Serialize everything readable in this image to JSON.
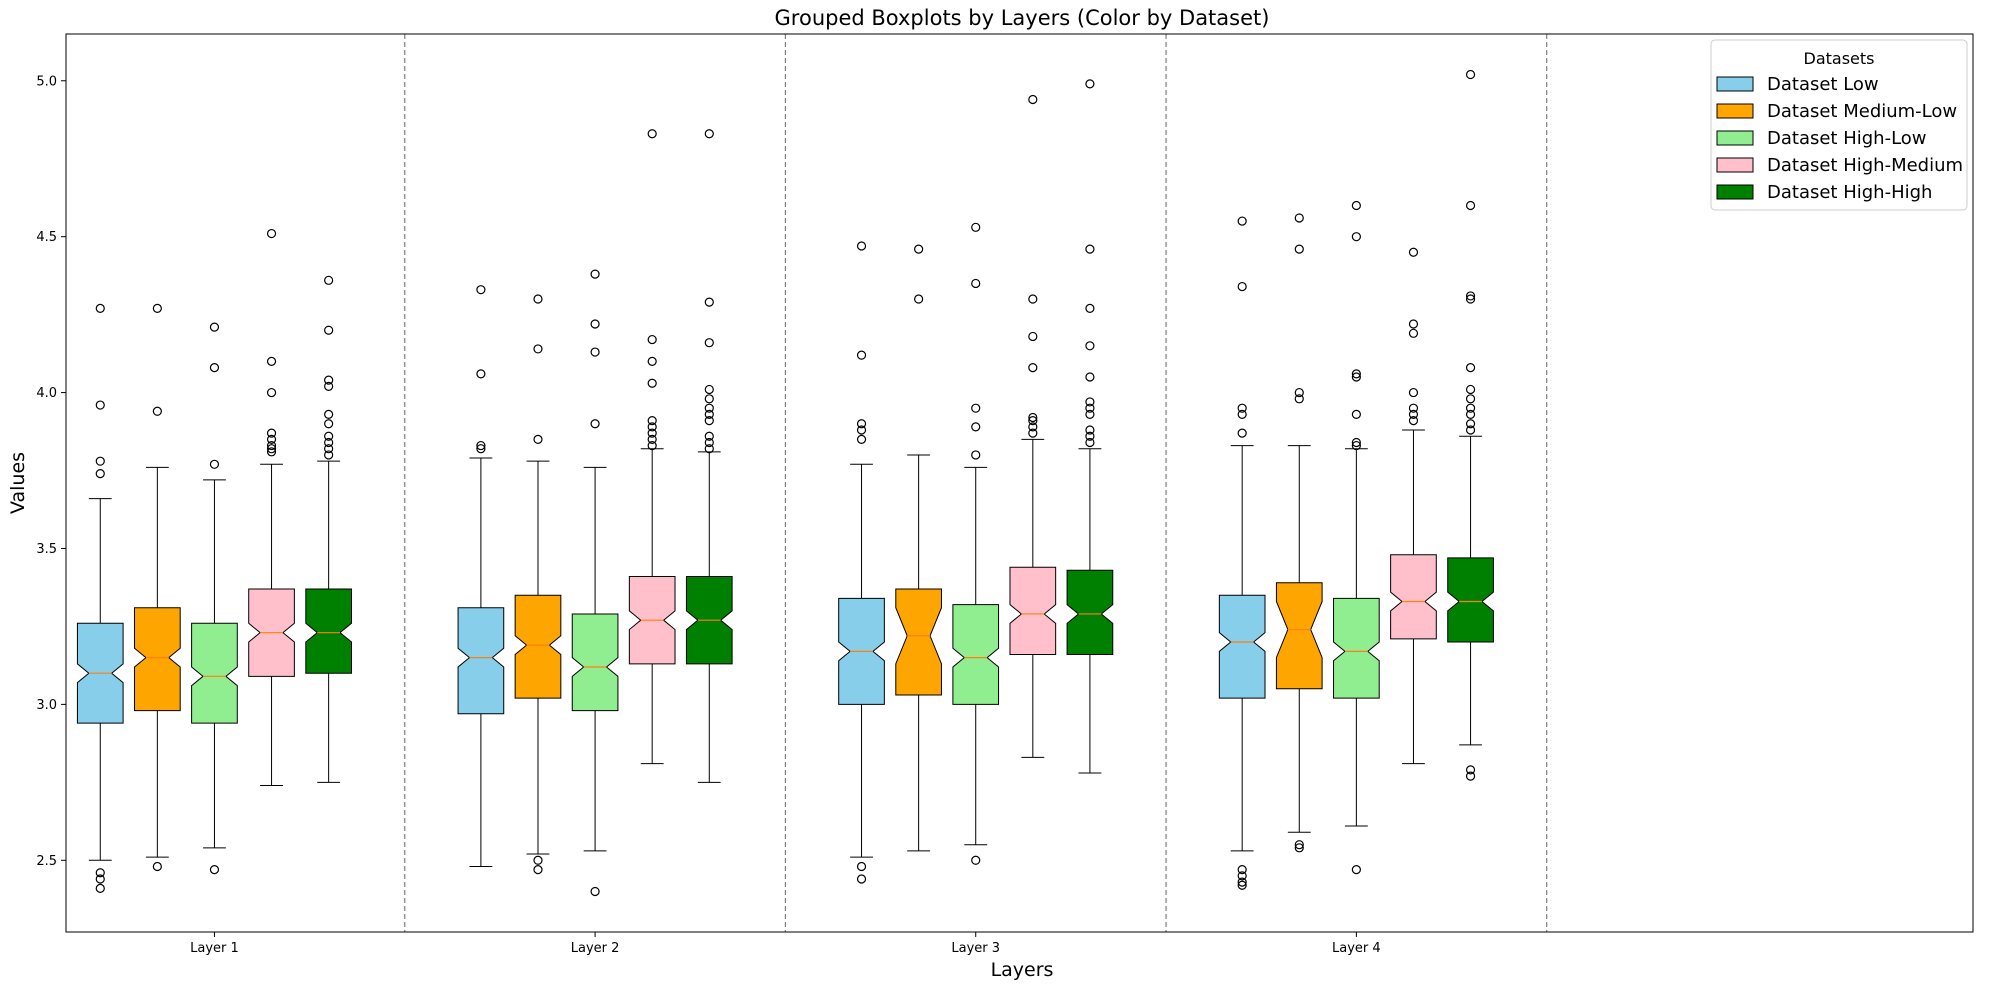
{
  "chart_data": {
    "type": "boxplot",
    "title": "Grouped Boxplots by Layers (Color by Dataset)",
    "xlabel": "Layers",
    "ylabel": "Values",
    "categories": [
      "Layer 1",
      "Layer 2",
      "Layer 3",
      "Layer 4"
    ],
    "ylim": [
      2.27,
      5.15
    ],
    "yticks": [
      2.5,
      3.0,
      3.5,
      4.0,
      4.5,
      5.0
    ],
    "ytick_labels": [
      "2.5",
      "3.0",
      "3.5",
      "4.0",
      "4.5",
      "5.0"
    ],
    "separators": [
      1.5,
      2.5,
      3.5,
      4.5
    ],
    "legend": {
      "title": "Datasets",
      "position": "top-right"
    },
    "series": [
      {
        "name": "Dataset Low",
        "color": "#87ceeb",
        "groups": [
          {
            "layer": "Layer 1",
            "q1": 2.94,
            "median": 3.1,
            "q3": 3.26,
            "notch_lo": 3.07,
            "notch_hi": 3.13,
            "whisker_lo": 2.5,
            "whisker_hi": 3.66,
            "outliers": [
              2.41,
              2.44,
              2.46,
              3.74,
              3.78,
              3.96,
              4.27
            ]
          },
          {
            "layer": "Layer 2",
            "q1": 2.97,
            "median": 3.15,
            "q3": 3.31,
            "notch_lo": 3.12,
            "notch_hi": 3.18,
            "whisker_lo": 2.48,
            "whisker_hi": 3.79,
            "outliers": [
              3.82,
              3.83,
              4.06,
              4.33
            ]
          },
          {
            "layer": "Layer 3",
            "q1": 3.0,
            "median": 3.17,
            "q3": 3.34,
            "notch_lo": 3.14,
            "notch_hi": 3.2,
            "whisker_lo": 2.51,
            "whisker_hi": 3.77,
            "outliers": [
              2.44,
              2.48,
              3.85,
              3.88,
              3.9,
              4.12,
              4.47
            ]
          },
          {
            "layer": "Layer 4",
            "q1": 3.02,
            "median": 3.2,
            "q3": 3.35,
            "notch_lo": 3.17,
            "notch_hi": 3.23,
            "whisker_lo": 2.53,
            "whisker_hi": 3.83,
            "outliers": [
              2.42,
              2.43,
              2.45,
              2.47,
              3.87,
              3.93,
              3.95,
              4.34,
              4.55
            ]
          }
        ]
      },
      {
        "name": "Dataset Medium-Low",
        "color": "#ffa500",
        "groups": [
          {
            "layer": "Layer 1",
            "q1": 2.98,
            "median": 3.15,
            "q3": 3.31,
            "notch_lo": 3.12,
            "notch_hi": 3.18,
            "whisker_lo": 2.51,
            "whisker_hi": 3.76,
            "outliers": [
              2.48,
              3.94,
              4.27
            ]
          },
          {
            "layer": "Layer 2",
            "q1": 3.02,
            "median": 3.19,
            "q3": 3.35,
            "notch_lo": 3.16,
            "notch_hi": 3.22,
            "whisker_lo": 2.52,
            "whisker_hi": 3.78,
            "outliers": [
              2.47,
              2.5,
              3.85,
              4.14,
              4.3
            ]
          },
          {
            "layer": "Layer 3",
            "q1": 3.03,
            "median": 3.22,
            "q3": 3.37,
            "notch_lo": 3.13,
            "notch_hi": 3.31,
            "whisker_lo": 2.53,
            "whisker_hi": 3.8,
            "outliers": [
              4.3,
              4.46
            ]
          },
          {
            "layer": "Layer 4",
            "q1": 3.05,
            "median": 3.24,
            "q3": 3.39,
            "notch_lo": 3.15,
            "notch_hi": 3.33,
            "whisker_lo": 2.59,
            "whisker_hi": 3.83,
            "outliers": [
              2.54,
              2.55,
              3.98,
              4.0,
              4.46,
              4.56
            ]
          }
        ]
      },
      {
        "name": "Dataset High-Low",
        "color": "#90ee90",
        "groups": [
          {
            "layer": "Layer 1",
            "q1": 2.94,
            "median": 3.09,
            "q3": 3.26,
            "notch_lo": 3.06,
            "notch_hi": 3.12,
            "whisker_lo": 2.54,
            "whisker_hi": 3.72,
            "outliers": [
              2.47,
              3.77,
              4.08,
              4.21
            ]
          },
          {
            "layer": "Layer 2",
            "q1": 2.98,
            "median": 3.12,
            "q3": 3.29,
            "notch_lo": 3.09,
            "notch_hi": 3.15,
            "whisker_lo": 2.53,
            "whisker_hi": 3.76,
            "outliers": [
              2.4,
              3.9,
              4.13,
              4.22,
              4.38
            ]
          },
          {
            "layer": "Layer 3",
            "q1": 3.0,
            "median": 3.15,
            "q3": 3.32,
            "notch_lo": 3.12,
            "notch_hi": 3.18,
            "whisker_lo": 2.55,
            "whisker_hi": 3.76,
            "outliers": [
              2.5,
              3.8,
              3.89,
              3.95,
              4.35,
              4.53
            ]
          },
          {
            "layer": "Layer 4",
            "q1": 3.02,
            "median": 3.17,
            "q3": 3.34,
            "notch_lo": 3.14,
            "notch_hi": 3.2,
            "whisker_lo": 2.61,
            "whisker_hi": 3.82,
            "outliers": [
              2.47,
              3.83,
              3.84,
              3.93,
              4.05,
              4.06,
              4.5,
              4.6
            ]
          }
        ]
      },
      {
        "name": "Dataset High-Medium",
        "color": "#ffc0cb",
        "groups": [
          {
            "layer": "Layer 1",
            "q1": 3.09,
            "median": 3.23,
            "q3": 3.37,
            "notch_lo": 3.2,
            "notch_hi": 3.26,
            "whisker_lo": 2.74,
            "whisker_hi": 3.77,
            "outliers": [
              3.81,
              3.82,
              3.83,
              3.85,
              3.87,
              4.0,
              4.1,
              4.51
            ]
          },
          {
            "layer": "Layer 2",
            "q1": 3.13,
            "median": 3.27,
            "q3": 3.41,
            "notch_lo": 3.24,
            "notch_hi": 3.3,
            "whisker_lo": 2.81,
            "whisker_hi": 3.82,
            "outliers": [
              3.83,
              3.85,
              3.87,
              3.89,
              3.91,
              4.03,
              4.1,
              4.17,
              4.83
            ]
          },
          {
            "layer": "Layer 3",
            "q1": 3.16,
            "median": 3.29,
            "q3": 3.44,
            "notch_lo": 3.26,
            "notch_hi": 3.32,
            "whisker_lo": 2.83,
            "whisker_hi": 3.85,
            "outliers": [
              3.87,
              3.89,
              3.91,
              3.92,
              4.08,
              4.18,
              4.3,
              4.94
            ]
          },
          {
            "layer": "Layer 4",
            "q1": 3.21,
            "median": 3.33,
            "q3": 3.48,
            "notch_lo": 3.3,
            "notch_hi": 3.36,
            "whisker_lo": 2.81,
            "whisker_hi": 3.88,
            "outliers": [
              3.91,
              3.93,
              3.95,
              4.0,
              4.19,
              4.22,
              4.45
            ]
          }
        ]
      },
      {
        "name": "Dataset High-High",
        "color": "#008000",
        "groups": [
          {
            "layer": "Layer 1",
            "q1": 3.1,
            "median": 3.23,
            "q3": 3.37,
            "notch_lo": 3.2,
            "notch_hi": 3.26,
            "whisker_lo": 2.75,
            "whisker_hi": 3.78,
            "outliers": [
              3.8,
              3.82,
              3.84,
              3.86,
              3.9,
              3.93,
              4.02,
              4.04,
              4.2,
              4.36
            ]
          },
          {
            "layer": "Layer 2",
            "q1": 3.13,
            "median": 3.27,
            "q3": 3.41,
            "notch_lo": 3.24,
            "notch_hi": 3.3,
            "whisker_lo": 2.75,
            "whisker_hi": 3.81,
            "outliers": [
              3.82,
              3.84,
              3.86,
              3.91,
              3.93,
              3.95,
              3.98,
              4.01,
              4.16,
              4.29,
              4.83
            ]
          },
          {
            "layer": "Layer 3",
            "q1": 3.16,
            "median": 3.29,
            "q3": 3.43,
            "notch_lo": 3.26,
            "notch_hi": 3.32,
            "whisker_lo": 2.78,
            "whisker_hi": 3.82,
            "outliers": [
              3.84,
              3.86,
              3.88,
              3.93,
              3.95,
              3.97,
              4.05,
              4.15,
              4.27,
              4.46,
              4.99
            ]
          },
          {
            "layer": "Layer 4",
            "q1": 3.2,
            "median": 3.33,
            "q3": 3.47,
            "notch_lo": 3.3,
            "notch_hi": 3.36,
            "whisker_lo": 2.87,
            "whisker_hi": 3.86,
            "outliers": [
              2.77,
              2.79,
              3.88,
              3.9,
              3.93,
              3.95,
              3.98,
              4.01,
              4.08,
              4.3,
              4.31,
              4.6,
              5.02
            ]
          }
        ]
      }
    ]
  }
}
